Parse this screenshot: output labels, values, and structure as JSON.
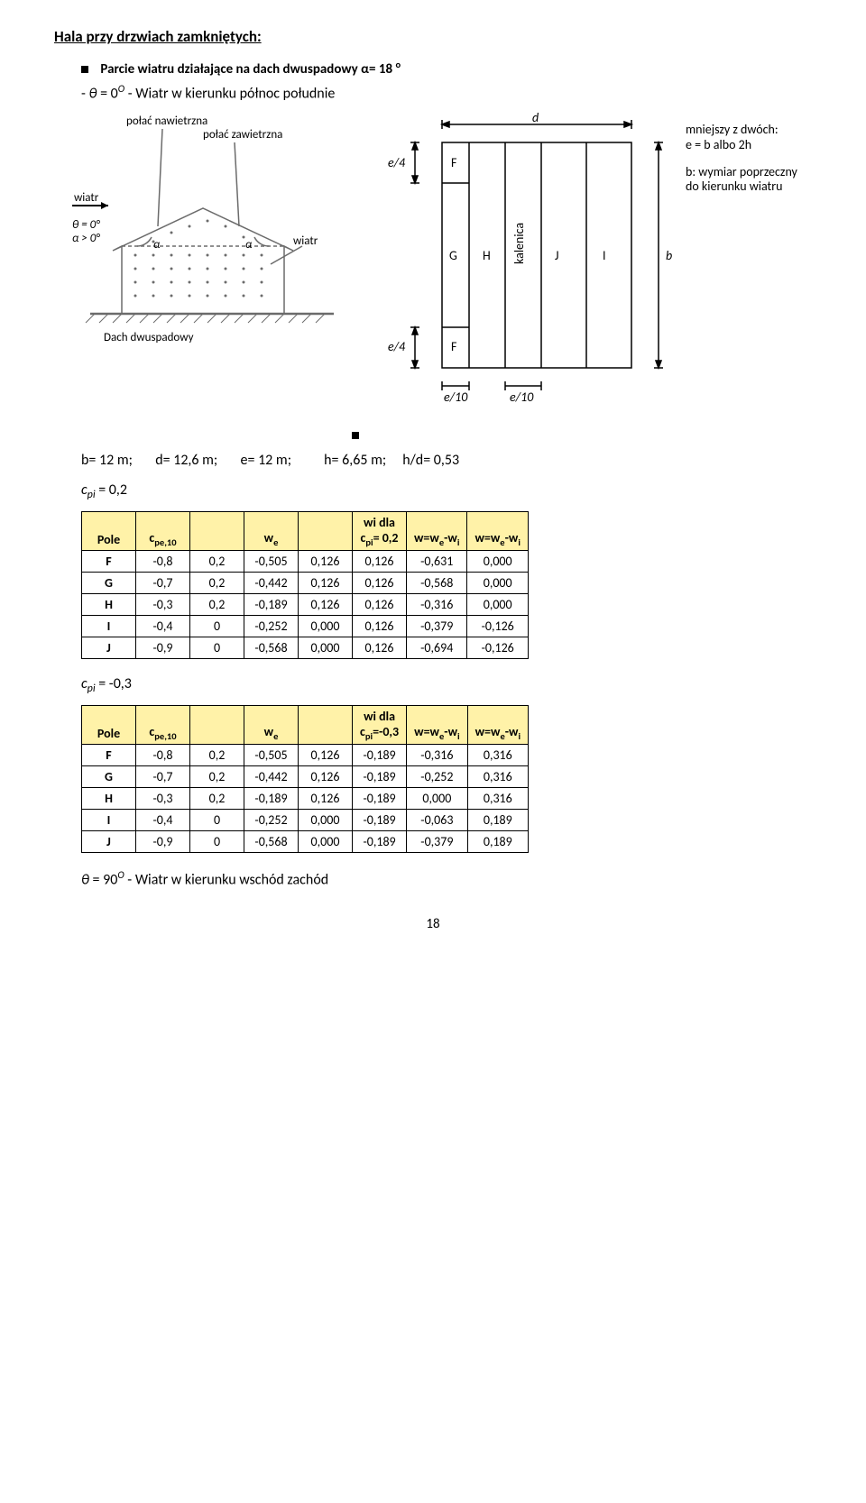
{
  "section_title": "Hala przy drzwiach zamkniętych:",
  "bullet1_html": "Parcie wiatru działające na dach dwuspadowy α= 18 <sup>o</sup>",
  "subline_html": "- <span style='font-style:italic;'>θ</span> = 0<sup><i>O</i></sup> - Wiatr w kierunku północ południe",
  "diag_left": {
    "labels": {
      "polac_naw": "połać nawietrzna",
      "polac_zaw": "połać zawietrzna",
      "wiatr": "wiatr",
      "wiatr_arrow": "wiatr",
      "dach": "Dach dwuspadowy",
      "theta": "θ = 0°",
      "alpha": "α > 0°",
      "a1": "α",
      "a2": "α"
    },
    "colors": {
      "stroke": "#6b6b6b",
      "fill": "#ffffff",
      "hatch": "#6b6b6b"
    }
  },
  "diag_right": {
    "labels": {
      "d": "d",
      "b": "b",
      "e4a": "e/4",
      "e4b": "e/4",
      "e10a": "e/10",
      "e10b": "e/10",
      "F1": "F",
      "F2": "F",
      "G": "G",
      "H": "H",
      "J": "J",
      "I": "I",
      "kal": "kalenica",
      "note1": "mniejszy z dwóch:",
      "note2_html": "<i>e</i> = <i>b</i> albo 2<i>h</i>",
      "note3_html": "<i>b</i>: wymiar poprzeczny",
      "note4": "do kierunku wiatru"
    },
    "colors": {
      "stroke": "#000000"
    }
  },
  "params_html": "b= 12 m;&nbsp;&nbsp;&nbsp;&nbsp;&nbsp;&nbsp;&nbsp;d= 12,6 m;&nbsp;&nbsp;&nbsp;&nbsp;&nbsp;&nbsp;&nbsp;e= 12 m;&nbsp;&nbsp;&nbsp;&nbsp;&nbsp;&nbsp;&nbsp;&nbsp;&nbsp;&nbsp;h= 6,65 m;&nbsp;&nbsp;&nbsp;&nbsp;&nbsp;h/d= 0,53",
  "cpi_line1_html": "<span class='italic'>c<sub>pi</sub></span> = 0,2",
  "cpi_line2_html": "<span class='italic'>c<sub>pi</sub></span> = -0,3",
  "table1": {
    "header_bg": "#fff2a8",
    "cols": [
      "Pole",
      "c_{pe,10}",
      "",
      "w_e",
      "",
      "wi dla\nc_{pi}= 0,2",
      "w=w_e-w_i",
      "w=w_e-w_i"
    ],
    "header_row": [
      "Pole",
      "c<sub>pe,10</sub>",
      "",
      "w<sub>e</sub>",
      "",
      "wi dla<br>c<sub>pi</sub>= 0,2",
      "w=w<sub>e</sub>-w<sub>i</sub>",
      "w=w<sub>e</sub>-w<sub>i</sub>"
    ],
    "rows": [
      [
        "F",
        "-0,8",
        "0,2",
        "-0,505",
        "0,126",
        "0,126",
        "-0,631",
        "0,000"
      ],
      [
        "G",
        "-0,7",
        "0,2",
        "-0,442",
        "0,126",
        "0,126",
        "-0,568",
        "0,000"
      ],
      [
        "H",
        "-0,3",
        "0,2",
        "-0,189",
        "0,126",
        "0,126",
        "-0,316",
        "0,000"
      ],
      [
        "I",
        "-0,4",
        "0",
        "-0,252",
        "0,000",
        "0,126",
        "-0,379",
        "-0,126"
      ],
      [
        "J",
        "-0,9",
        "0",
        "-0,568",
        "0,000",
        "0,126",
        "-0,694",
        "-0,126"
      ]
    ]
  },
  "table2": {
    "header_bg": "#fff2a8",
    "header_row": [
      "Pole",
      "c<sub>pe,10</sub>",
      "",
      "w<sub>e</sub>",
      "",
      "wi dla<br>c<sub>pi</sub>=-0,3",
      "w=w<sub>e</sub>-w<sub>i</sub>",
      "w=w<sub>e</sub>-w<sub>i</sub>"
    ],
    "rows": [
      [
        "F",
        "-0,8",
        "0,2",
        "-0,505",
        "0,126",
        "-0,189",
        "-0,316",
        "0,316"
      ],
      [
        "G",
        "-0,7",
        "0,2",
        "-0,442",
        "0,126",
        "-0,189",
        "-0,252",
        "0,316"
      ],
      [
        "H",
        "-0,3",
        "0,2",
        "-0,189",
        "0,126",
        "-0,189",
        "0,000",
        "0,316"
      ],
      [
        "I",
        "-0,4",
        "0",
        "-0,252",
        "0,000",
        "-0,189",
        "-0,063",
        "0,189"
      ],
      [
        "J",
        "-0,9",
        "0",
        "-0,568",
        "0,000",
        "-0,189",
        "-0,379",
        "0,189"
      ]
    ]
  },
  "footer_eq_html": "<span style='font-style:italic;'>θ</span> = 90<sup><i>O</i></sup> - Wiatr w kierunku wschód zachód",
  "page_number": "18"
}
